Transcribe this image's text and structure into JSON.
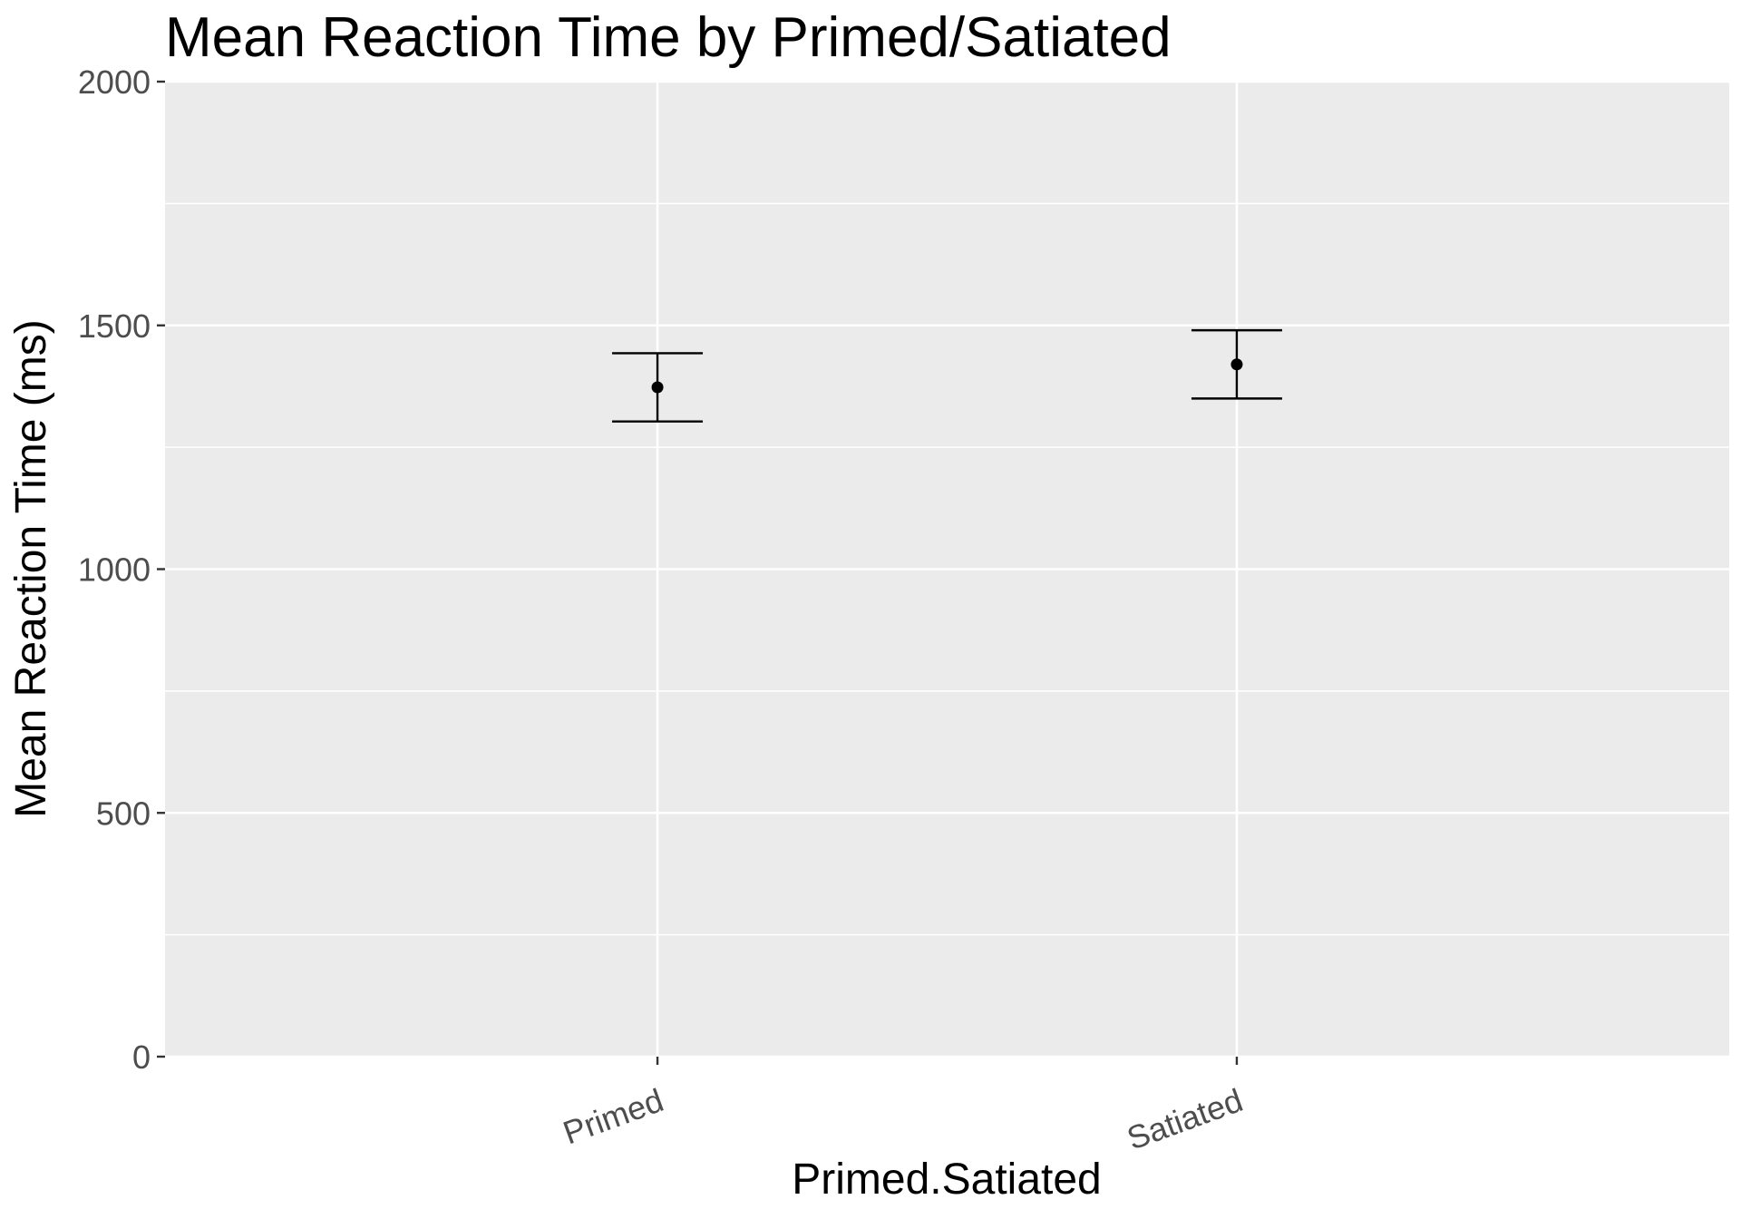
{
  "chart_data": {
    "type": "scatter",
    "title": "Mean Reaction Time by Primed/Satiated",
    "xlabel": "Primed.Satiated",
    "ylabel": "Mean Reaction Time (ms)",
    "categories": [
      "Primed",
      "Satiated"
    ],
    "values": [
      1373,
      1420
    ],
    "error_low": [
      1303,
      1350
    ],
    "error_high": [
      1443,
      1490
    ],
    "ylim": [
      0,
      2000
    ],
    "yticks": [
      0,
      500,
      1000,
      1500,
      2000
    ],
    "y_tick_labels": [
      "0",
      "500",
      "1000",
      "1500",
      "2000"
    ],
    "grid": true,
    "legend": "none",
    "colors": {
      "panel_background": "#ebebeb",
      "grid": "#ffffff",
      "points": "#000000",
      "tick_text": "#4d4d4d"
    }
  }
}
